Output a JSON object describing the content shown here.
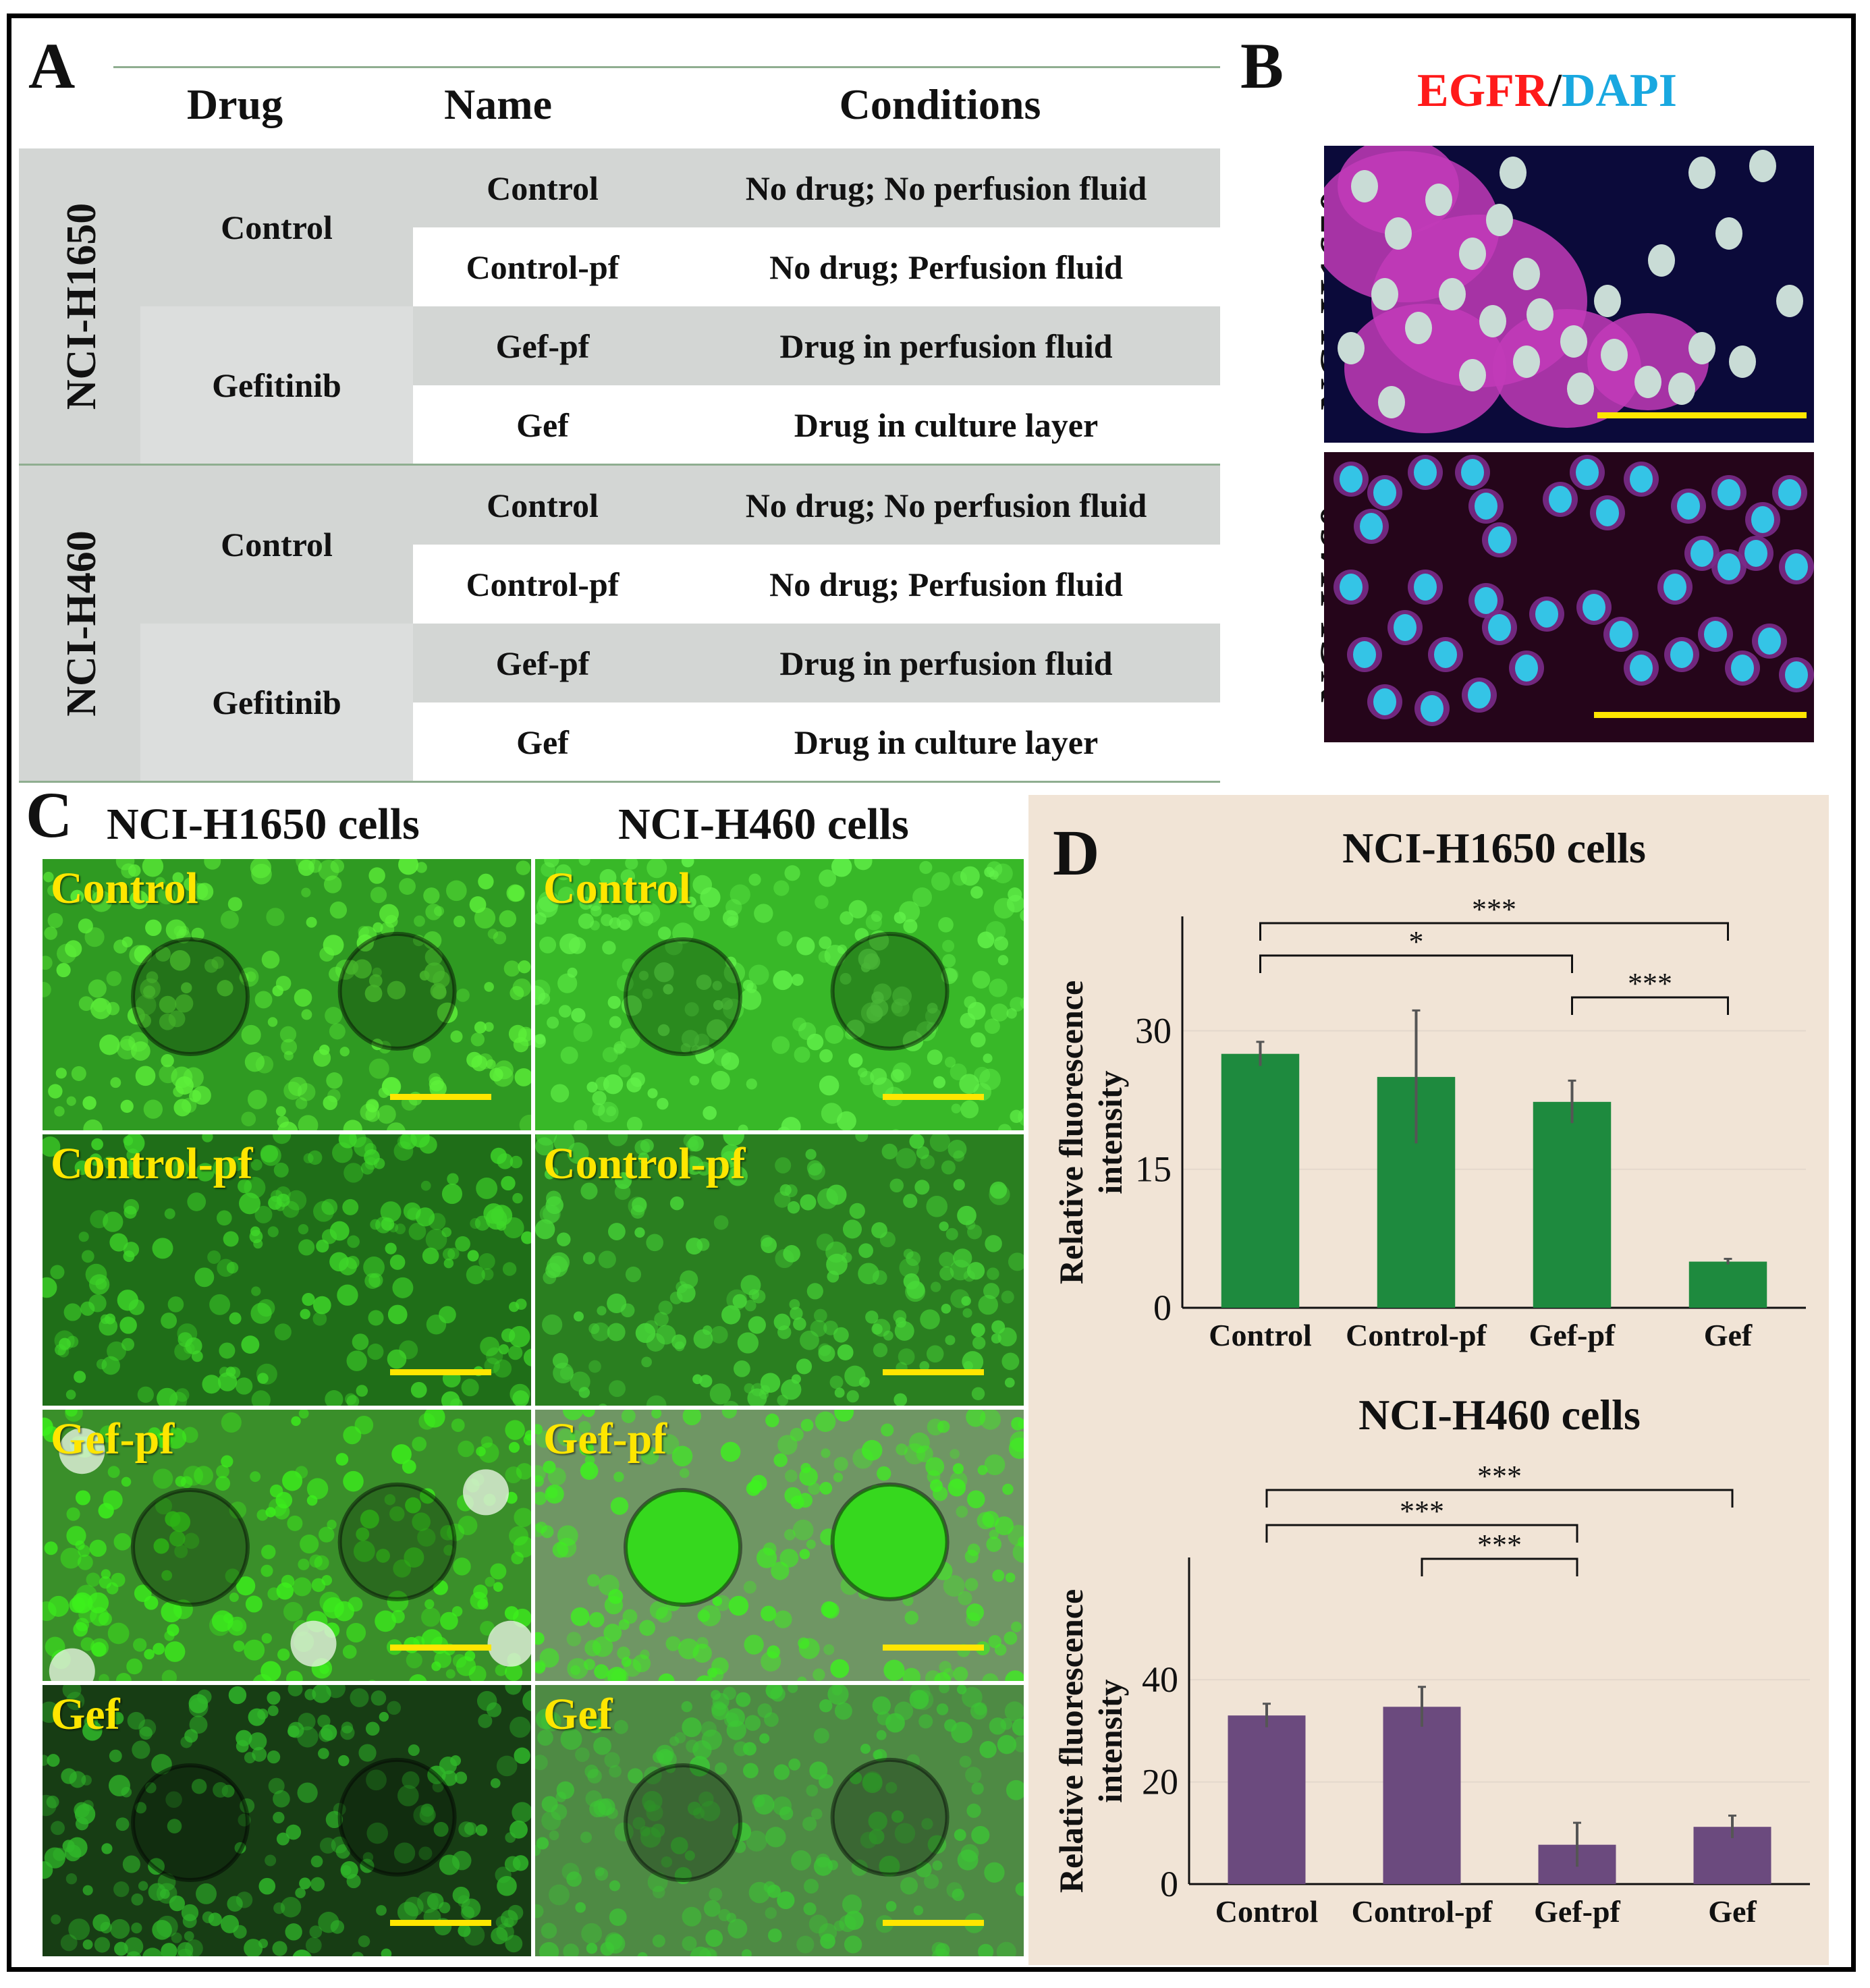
{
  "panels": {
    "a": "A",
    "b": "B",
    "c": "C",
    "d": "D"
  },
  "table": {
    "headers": {
      "drug": "Drug",
      "name": "Name",
      "conditions": "Conditions"
    },
    "groups": [
      {
        "cell_line": "NCI-H1650",
        "drugs": [
          {
            "drug": "Control",
            "rows": [
              {
                "name": "Control",
                "conditions": "No drug; No perfusion fluid"
              },
              {
                "name": "Control-pf",
                "conditions": "No drug; Perfusion fluid"
              }
            ]
          },
          {
            "drug": "Gefitinib",
            "rows": [
              {
                "name": "Gef-pf",
                "conditions": "Drug in perfusion fluid"
              },
              {
                "name": "Gef",
                "conditions": "Drug in culture layer"
              }
            ]
          }
        ]
      },
      {
        "cell_line": "NCI-H460",
        "drugs": [
          {
            "drug": "Control",
            "rows": [
              {
                "name": "Control",
                "conditions": "No drug; No perfusion fluid"
              },
              {
                "name": "Control-pf",
                "conditions": "No drug; Perfusion fluid"
              }
            ]
          },
          {
            "drug": "Gefitinib",
            "rows": [
              {
                "name": "Gef-pf",
                "conditions": "Drug in perfusion fluid"
              },
              {
                "name": "Gef",
                "conditions": "Drug in culture layer"
              }
            ]
          }
        ]
      }
    ]
  },
  "panel_b": {
    "title_egfr": "EGFR",
    "title_sep": "/",
    "title_dapi": "DAPI",
    "egfr_color": "#ff1a1a",
    "dapi_color": "#19a8e0",
    "rows": [
      {
        "label": "NCI-H1650"
      },
      {
        "label": "NCI-H460"
      }
    ]
  },
  "panel_c": {
    "columns": [
      "NCI-H1650 cells",
      "NCI-H460 cells"
    ],
    "conditions": [
      "Control",
      "Control-pf",
      "Gef-pf",
      "Gef"
    ],
    "label_color": "#ffe600"
  },
  "chart_data": [
    {
      "type": "bar",
      "title": "NCI-H1650 cells",
      "ylabel": "Relative fluorescence intensity",
      "ylabel_lines": [
        "Relative fluorescence",
        "intensity"
      ],
      "categories": [
        "Control",
        "Control-pf",
        "Gef-pf",
        "Gef"
      ],
      "values": [
        27.5,
        25,
        22.3,
        5
      ],
      "errors": [
        1.3,
        7.2,
        2.3,
        0.3
      ],
      "yticks": [
        0,
        15,
        30
      ],
      "ylim": [
        0,
        38
      ],
      "bar_color": "#1e8a3e",
      "significance": [
        {
          "from": 0,
          "to": 3,
          "label": "***"
        },
        {
          "from": 0,
          "to": 2,
          "label": "*"
        },
        {
          "from": 2,
          "to": 3,
          "label": "***"
        }
      ]
    },
    {
      "type": "bar",
      "title": "NCI-H460 cells",
      "ylabel": "Relative fluorescence intensity",
      "ylabel_lines": [
        "Relative fluorescence",
        "intensity"
      ],
      "categories": [
        "Control",
        "Control-pf",
        "Gef-pf",
        "Gef"
      ],
      "values": [
        33,
        34.7,
        7.7,
        11.2
      ],
      "errors": [
        2.3,
        3.9,
        4.3,
        2.2
      ],
      "yticks": [
        0,
        20,
        40
      ],
      "ylim": [
        0,
        56
      ],
      "bar_color": "#6b4a7e",
      "significance": [
        {
          "from": 0,
          "to": 3,
          "label": "***"
        },
        {
          "from": 0,
          "to": 2,
          "label": "***"
        },
        {
          "from": 1,
          "to": 2,
          "label": "***"
        }
      ]
    }
  ]
}
